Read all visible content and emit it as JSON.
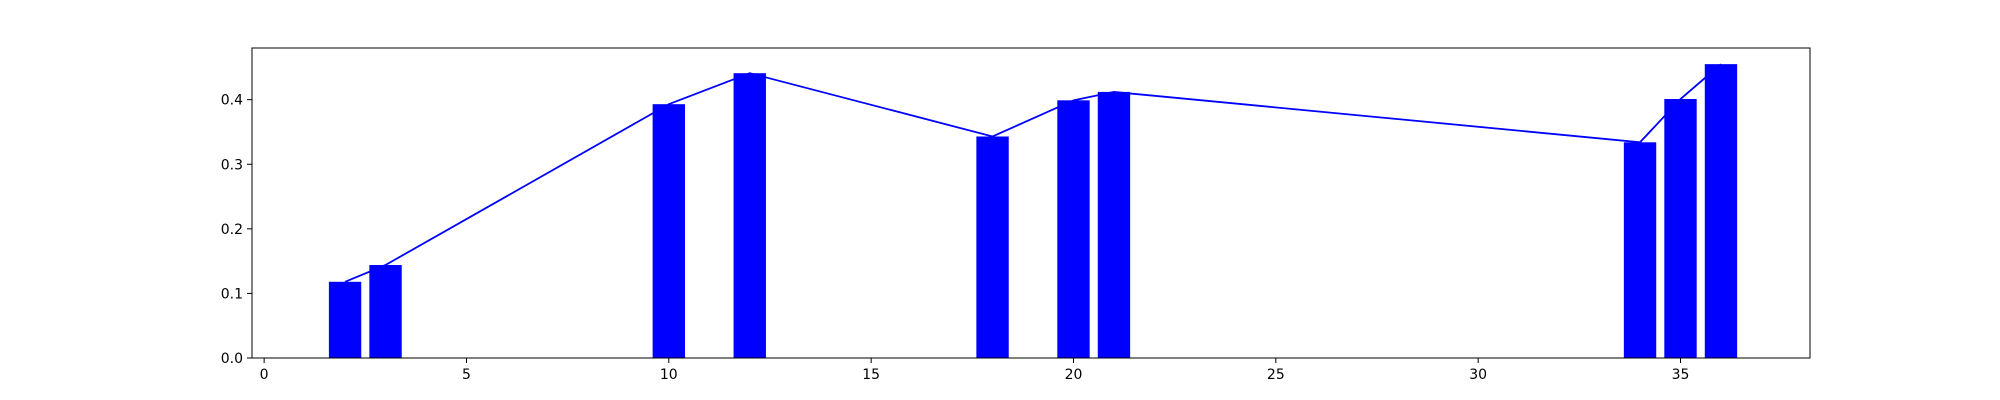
{
  "chart_data": {
    "type": "bar",
    "title": "",
    "xlabel": "",
    "ylabel": "",
    "xlim": [
      -0.3,
      38.2
    ],
    "ylim": [
      0.0,
      0.48
    ],
    "grid": false,
    "x_ticks": [
      0,
      5,
      10,
      15,
      20,
      25,
      30,
      35
    ],
    "x_tick_labels": [
      "0",
      "5",
      "10",
      "15",
      "20",
      "25",
      "30",
      "35"
    ],
    "y_ticks": [
      0.0,
      0.1,
      0.2,
      0.3,
      0.4
    ],
    "y_tick_labels": [
      "0.0",
      "0.1",
      "0.2",
      "0.3",
      "0.4"
    ],
    "x": [
      2,
      3,
      10,
      12,
      18,
      20,
      21,
      34,
      35,
      36
    ],
    "values": [
      0.118,
      0.144,
      0.393,
      0.441,
      0.343,
      0.399,
      0.412,
      0.334,
      0.401,
      0.455
    ],
    "bar_width": 0.8,
    "bar_color": "#0000ff",
    "line_color": "#0000ff"
  }
}
